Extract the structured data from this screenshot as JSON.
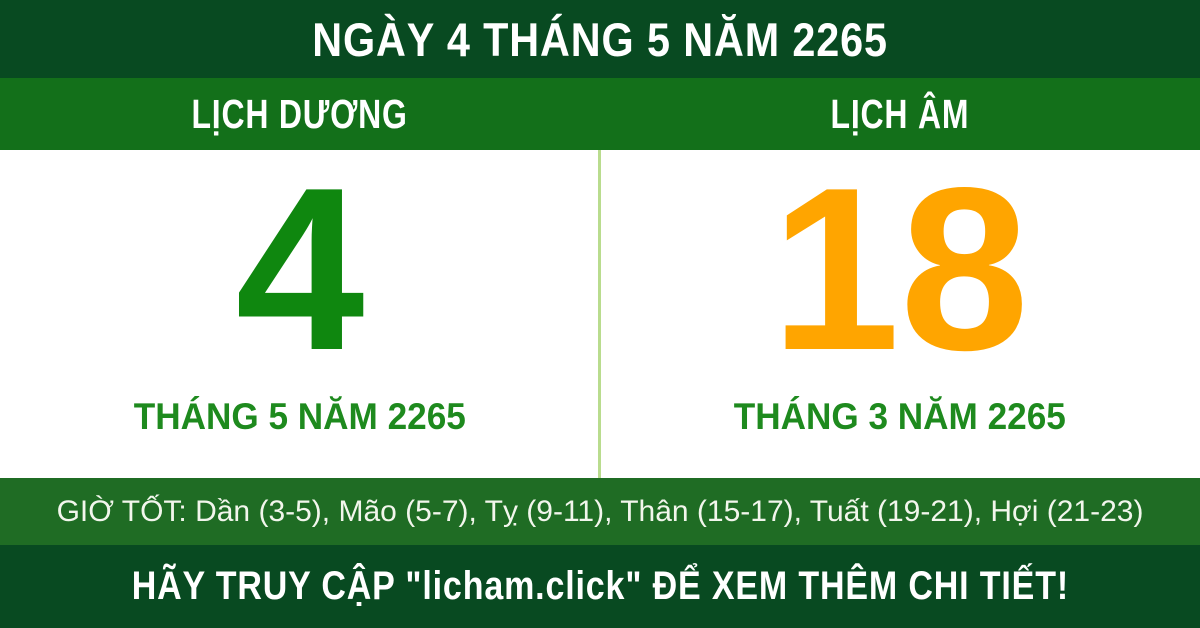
{
  "top_bar": {
    "title": "NGÀY 4 THÁNG 5 NĂM 2265"
  },
  "calendar": {
    "solar": {
      "header": "LỊCH DƯƠNG",
      "day": "4",
      "month_year": "THÁNG 5 NĂM 2265"
    },
    "lunar": {
      "header": "LỊCH ÂM",
      "day": "18",
      "month_year": "THÁNG 3 NĂM 2265"
    }
  },
  "good_hours": {
    "label": "GIỜ TỐT",
    "text": "GIỜ TỐT: Dần (3-5), Mão (5-7), Tỵ (9-11), Thân (15-17), Tuất (19-21), Hợi (21-23)"
  },
  "footer": {
    "text": "HÃY TRUY CẬP \"licham.click\" ĐỂ XEM THÊM CHI TIẾT!"
  },
  "colors": {
    "dark_green_banner": "#084a21",
    "header_green": "#13701a",
    "good_hours_green": "#1f6c24",
    "solar_day_green": "#0f870f",
    "month_label_green": "#1e8a1e",
    "lunar_day_orange": "#ffa500",
    "divider_light_green": "#b9dc8e",
    "text_white": "#ffffff"
  }
}
